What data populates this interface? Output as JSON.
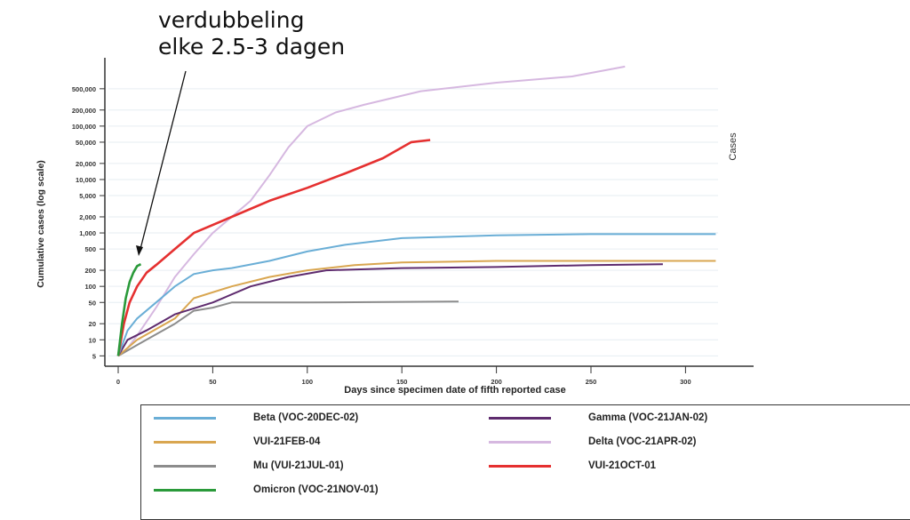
{
  "annotation": {
    "line1": "verdubbeling",
    "line2": "elke 2.5-3 dagen"
  },
  "right_label": "Cases",
  "chart_data": {
    "type": "line",
    "xlabel": "Days since specimen date of fifth reported case",
    "ylabel": "Cumulative cases (log scale)",
    "yscale": "log",
    "xlim": [
      -7,
      335
    ],
    "ylim": [
      3.2,
      1900000
    ],
    "grid": true,
    "legend_position": "bottom",
    "xticks": [
      0,
      50,
      100,
      150,
      200,
      250,
      300
    ],
    "yticks": [
      5,
      10,
      20,
      50,
      100,
      200,
      500,
      1000,
      2000,
      5000,
      10000,
      20000,
      50000,
      100000,
      200000,
      500000
    ],
    "ytick_labels": [
      "5",
      "10",
      "20",
      "50",
      "100",
      "200",
      "500",
      "1,000",
      "2,000",
      "5,000",
      "10,000",
      "20,000",
      "50,000",
      "100,000",
      "200,000",
      "500,000"
    ],
    "series": [
      {
        "name": "Beta (VOC-20DEC-02)",
        "color": "#6aaed6",
        "x": [
          0,
          5,
          10,
          20,
          30,
          40,
          50,
          60,
          80,
          100,
          120,
          150,
          200,
          250,
          316
        ],
        "y": [
          5,
          15,
          25,
          50,
          100,
          170,
          200,
          220,
          300,
          450,
          600,
          800,
          900,
          950,
          950
        ]
      },
      {
        "name": "Gamma (VOC-21JAN-02)",
        "color": "#5e2b6e",
        "x": [
          0,
          5,
          15,
          30,
          50,
          70,
          90,
          110,
          150,
          200,
          250,
          288
        ],
        "y": [
          5,
          10,
          15,
          30,
          50,
          100,
          150,
          200,
          220,
          230,
          250,
          260
        ]
      },
      {
        "name": "VUI-21FEB-04",
        "color": "#d9a650",
        "x": [
          0,
          10,
          30,
          40,
          60,
          80,
          100,
          125,
          150,
          200,
          316
        ],
        "y": [
          5,
          10,
          25,
          60,
          100,
          150,
          200,
          250,
          280,
          300,
          300
        ]
      },
      {
        "name": "Delta (VOC-21APR-02)",
        "color": "#d6b8e0",
        "x": [
          0,
          5,
          10,
          20,
          30,
          40,
          50,
          60,
          70,
          80,
          90,
          100,
          115,
          130,
          160,
          200,
          240,
          268
        ],
        "y": [
          5,
          7,
          12,
          40,
          150,
          400,
          1000,
          2000,
          4000,
          12000,
          40000,
          100000,
          180000,
          250000,
          450000,
          650000,
          850000,
          1300000
        ]
      },
      {
        "name": "Mu (VUI-21JUL-01)",
        "color": "#8c8c8c",
        "x": [
          0,
          10,
          30,
          40,
          50,
          60,
          100,
          180
        ],
        "y": [
          5,
          8,
          20,
          35,
          40,
          50,
          50,
          52
        ]
      },
      {
        "name": "VUI-21OCT-01",
        "color": "#e53030",
        "x": [
          0,
          3,
          6,
          10,
          15,
          20,
          30,
          40,
          60,
          80,
          100,
          120,
          140,
          155,
          165
        ],
        "y": [
          5,
          20,
          50,
          100,
          180,
          250,
          500,
          1000,
          2000,
          4000,
          7000,
          13000,
          25000,
          50000,
          55000
        ]
      },
      {
        "name": "Omicron (VOC-21NOV-01)",
        "color": "#2a9a3a",
        "x": [
          0,
          2,
          4,
          6,
          8,
          10,
          12
        ],
        "y": [
          5,
          20,
          60,
          120,
          180,
          240,
          260
        ]
      }
    ]
  }
}
